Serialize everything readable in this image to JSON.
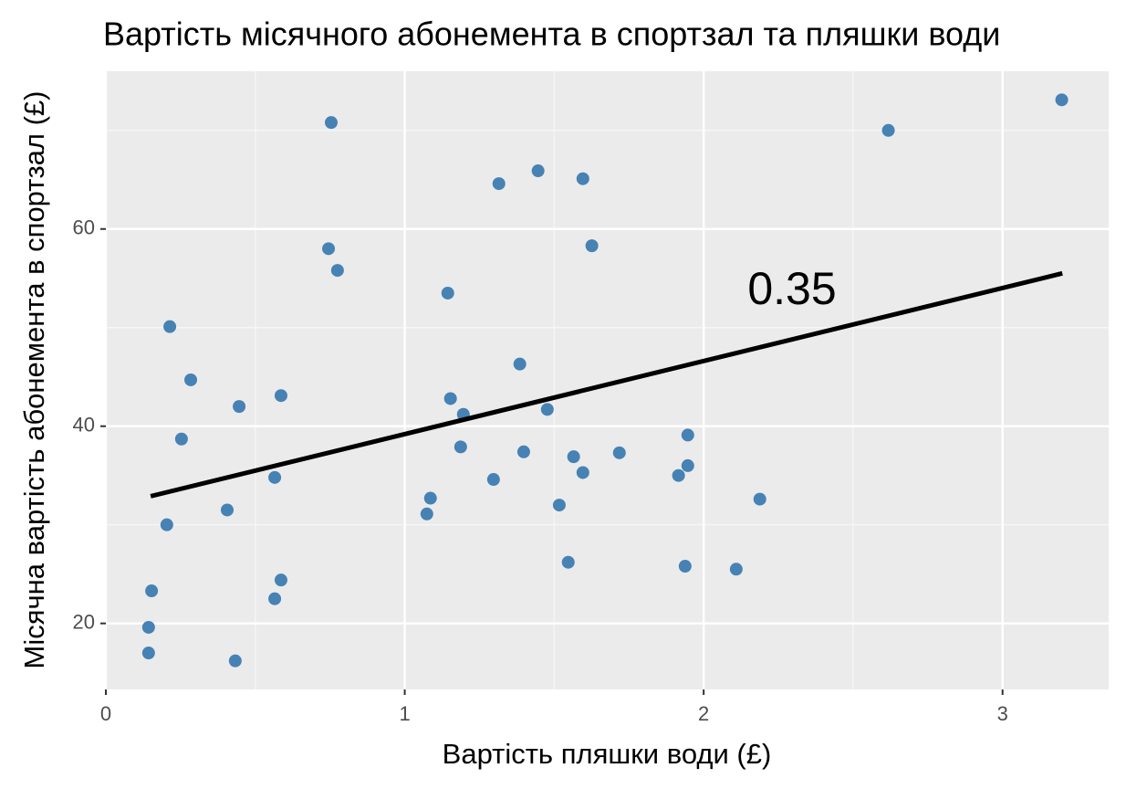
{
  "chart_data": {
    "type": "scatter",
    "title": "Вартість місячного абонемента в спортзал та пляшки води",
    "x_label": "Вартість пляшки води (£)",
    "y_label": "Місячна вартість абонемента в спортзал (£)",
    "x": [
      0.754,
      0.745,
      0.775,
      0.214,
      0.284,
      0.446,
      0.586,
      0.253,
      0.565,
      0.406,
      0.204,
      0.153,
      0.143,
      0.143,
      0.433,
      0.565,
      0.586,
      1.315,
      1.446,
      1.596,
      1.626,
      1.144,
      1.385,
      1.153,
      1.196,
      1.477,
      1.187,
      1.398,
      1.565,
      1.718,
      1.596,
      1.297,
      1.086,
      1.074,
      1.517,
      1.547,
      1.947,
      1.947,
      1.916,
      2.188,
      1.938,
      2.109,
      2.618,
      3.198
    ],
    "values": [
      70.8,
      58.0,
      55.8,
      50.1,
      44.7,
      42.0,
      43.1,
      38.7,
      34.8,
      31.5,
      30.0,
      23.3,
      19.6,
      17.0,
      16.2,
      22.5,
      24.4,
      64.6,
      65.9,
      65.1,
      58.3,
      53.5,
      46.3,
      42.8,
      41.2,
      41.7,
      37.9,
      37.4,
      36.9,
      37.3,
      35.3,
      34.6,
      32.7,
      31.1,
      32.0,
      26.2,
      39.1,
      36.0,
      35.0,
      32.6,
      25.8,
      25.5,
      70.0,
      73.1
    ],
    "color": "#4682b4",
    "trend_line": {
      "x": [
        0.15,
        3.2
      ],
      "y": [
        32.9,
        55.5
      ],
      "color": "#000000"
    },
    "annotation": "0.35",
    "xlim": [
      0,
      3.355
    ],
    "ylim": [
      13.3,
      76.0
    ],
    "xticks": [
      0,
      1,
      2,
      3
    ],
    "yticks": [
      20,
      40,
      60
    ],
    "x_minor_grid": [
      0.5,
      1.5,
      2.5
    ],
    "y_minor_grid": [
      30,
      50,
      70
    ],
    "grid": true
  }
}
